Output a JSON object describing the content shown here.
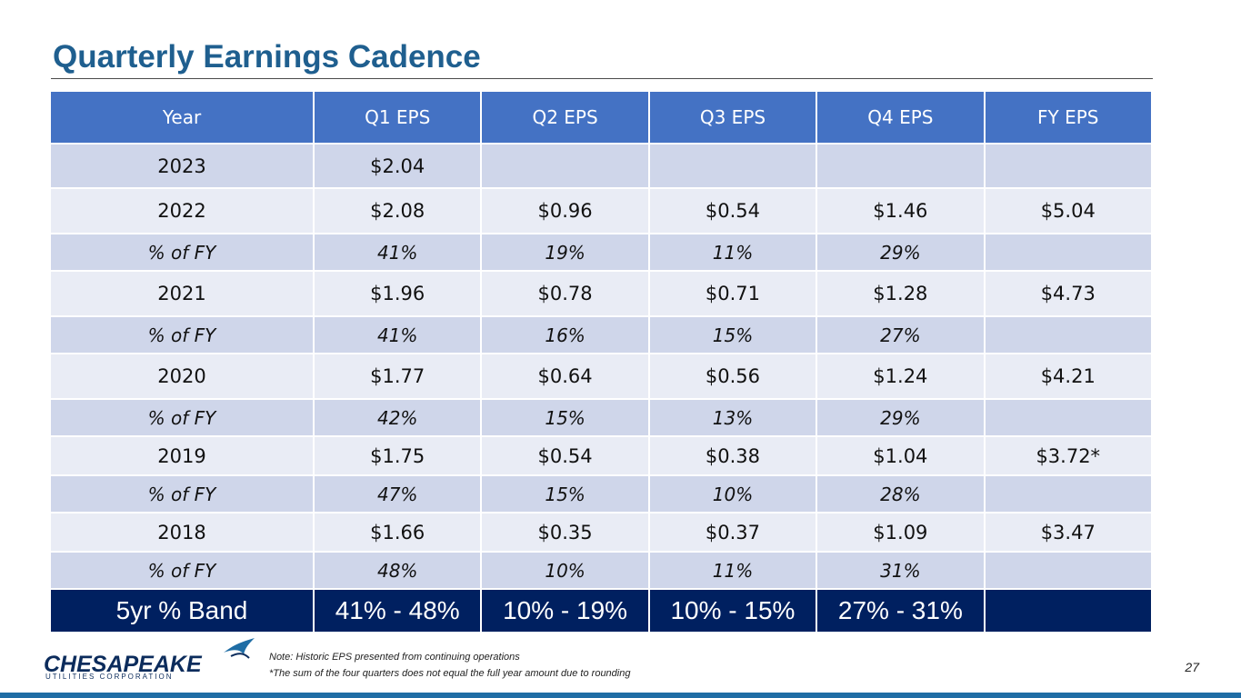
{
  "title": "Quarterly Earnings Cadence",
  "table": {
    "headers": [
      "Year",
      "Q1 EPS",
      "Q2 EPS",
      "Q3 EPS",
      "Q4 EPS",
      "FY EPS"
    ],
    "rows": [
      [
        "2023",
        "$2.04",
        "",
        "",
        "",
        ""
      ],
      [
        "2022",
        "$2.08",
        "$0.96",
        "$0.54",
        "$1.46",
        "$5.04"
      ],
      [
        "% of FY",
        "41%",
        "19%",
        "11%",
        "29%",
        ""
      ],
      [
        "2021",
        "$1.96",
        "$0.78",
        "$0.71",
        "$1.28",
        "$4.73"
      ],
      [
        "% of FY",
        "41%",
        "16%",
        "15%",
        "27%",
        ""
      ],
      [
        "2020",
        "$1.77",
        "$0.64",
        "$0.56",
        "$1.24",
        "$4.21"
      ],
      [
        "% of FY",
        "42%",
        "15%",
        "13%",
        "29%",
        ""
      ],
      [
        "2019",
        "$1.75",
        "$0.54",
        "$0.38",
        "$1.04",
        "$3.72*"
      ],
      [
        "% of FY",
        "47%",
        "15%",
        "10%",
        "28%",
        ""
      ],
      [
        "2018",
        "$1.66",
        "$0.35",
        "$0.37",
        "$1.09",
        "$3.47"
      ],
      [
        "% of FY",
        "48%",
        "10%",
        "11%",
        "31%",
        ""
      ],
      [
        "5yr % Band",
        "41% - 48%",
        "10% - 19%",
        "10% - 15%",
        "27% - 31%",
        ""
      ]
    ]
  },
  "logo": {
    "name": "CHESAPEAKE",
    "subtitle": "UTILITIES CORPORATION"
  },
  "notes": {
    "line1": "Note: Historic EPS presented from continuing operations",
    "line2": "*The sum of the four quarters does not equal the full year amount due to rounding"
  },
  "page_number": "27",
  "colors": {
    "title": "#1f5f8f",
    "header_bg": "#4472c4",
    "band_bg": "#002060",
    "row_dark": "#cfd6ea",
    "row_light": "#e9ecf5"
  }
}
